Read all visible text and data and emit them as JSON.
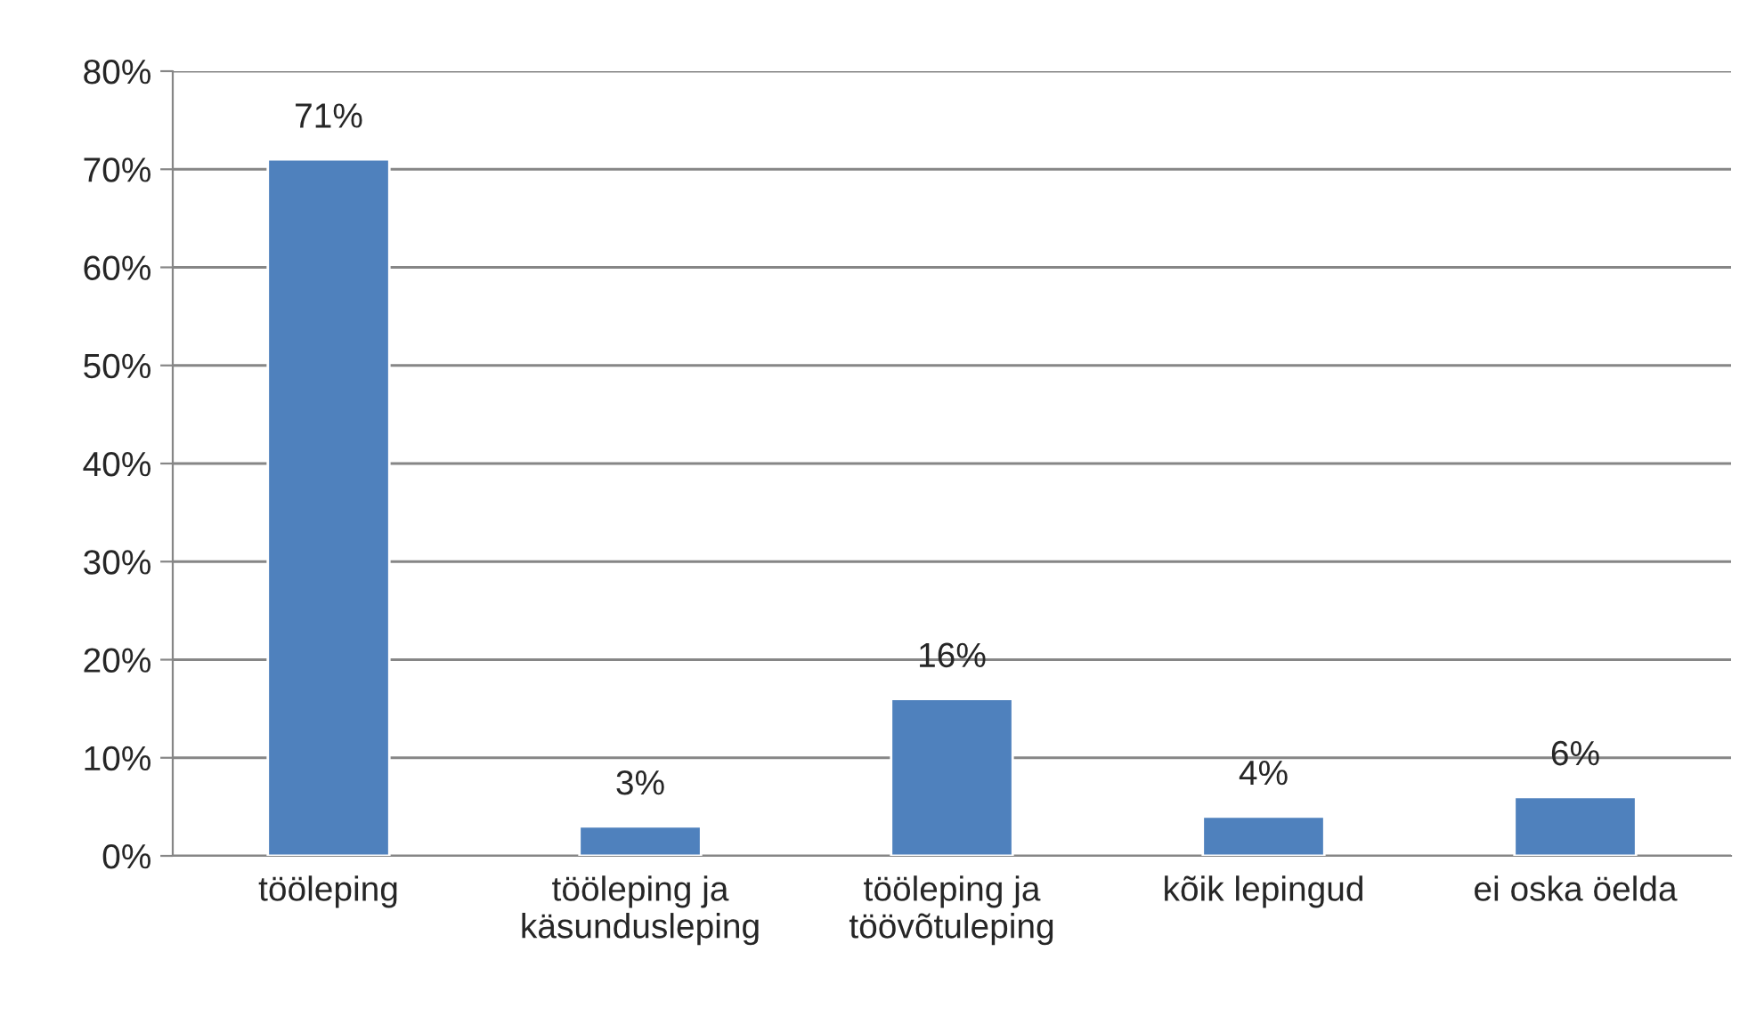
{
  "chart_data": {
    "type": "bar",
    "categories": [
      "tööleping",
      "tööleping ja käsundusleping",
      "tööleping ja töövõtuleping",
      "kõik lepingud",
      "ei oska öelda"
    ],
    "values": [
      71,
      3,
      16,
      4,
      6
    ],
    "value_labels": [
      "71%",
      "3%",
      "16%",
      "4%",
      "6%"
    ],
    "color": "#4f81bd",
    "ylim": [
      0,
      80
    ],
    "yticks": [
      {
        "value": 0,
        "label": "0%"
      },
      {
        "value": 10,
        "label": "10%"
      },
      {
        "value": 20,
        "label": "20%"
      },
      {
        "value": 30,
        "label": "30%"
      },
      {
        "value": 40,
        "label": "40%"
      },
      {
        "value": 50,
        "label": "50%"
      },
      {
        "value": 60,
        "label": "60%"
      },
      {
        "value": 70,
        "label": "70%"
      },
      {
        "value": 80,
        "label": "80%"
      }
    ],
    "grid": "y",
    "legend": false
  }
}
